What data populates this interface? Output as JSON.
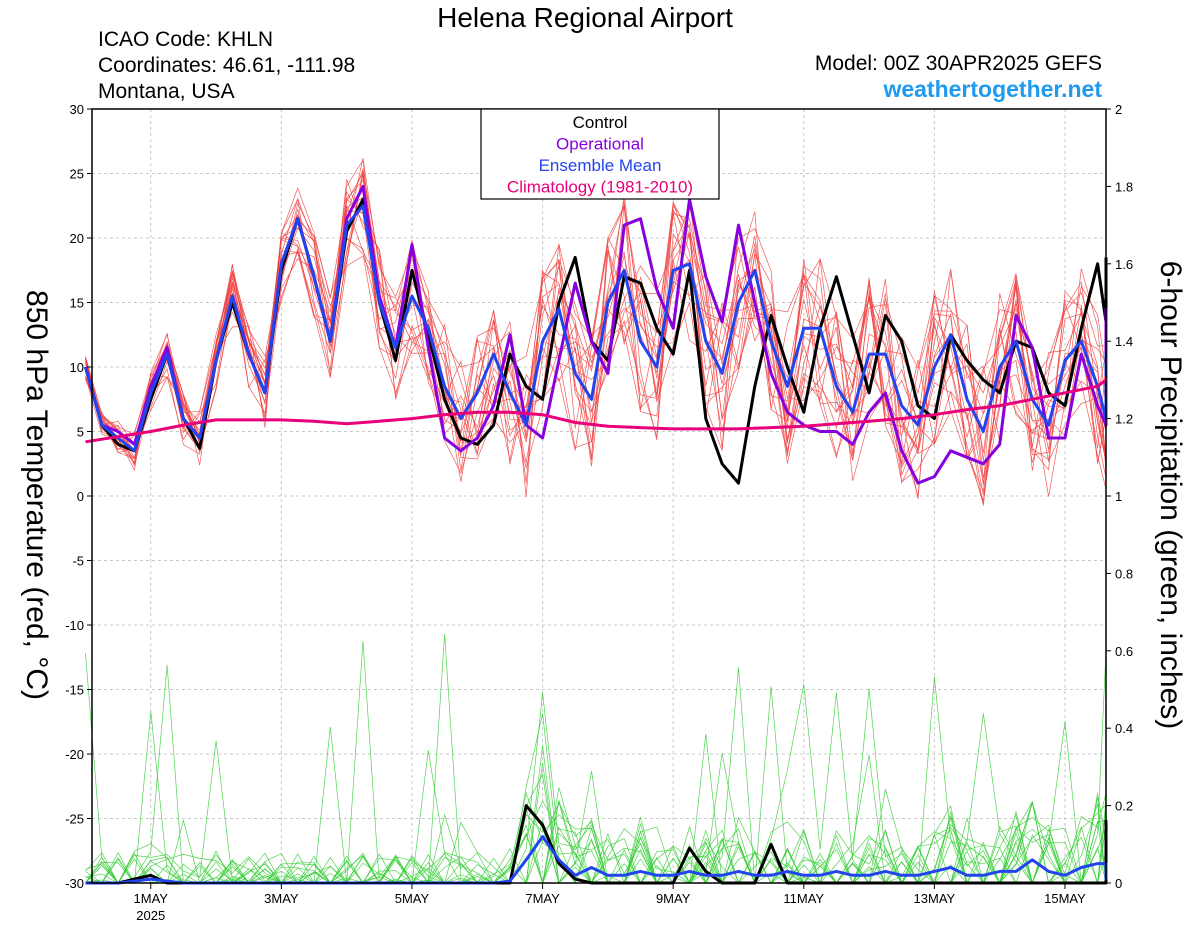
{
  "header": {
    "title": "Helena Regional Airport",
    "icao": "ICAO Code: KHLN",
    "coords": "Coordinates: 46.61, -111.98",
    "region": "Montana, USA",
    "model": "Model: 00Z 30APR2025 GEFS",
    "site": "weathertogether.net"
  },
  "chart_data": {
    "type": "line",
    "xlabel": "",
    "ylabel_left": "850 hPa Temperature (red, °C)",
    "ylabel_right": "6-hour Precipitation (green, inches)",
    "ylim_left": [
      -30,
      30
    ],
    "ylim_right": [
      0,
      2
    ],
    "y_ticks_left": [
      30,
      25,
      20,
      15,
      10,
      5,
      0,
      -5,
      -10,
      -15,
      -20,
      -25,
      -30
    ],
    "y_ticks_right": [
      "2",
      "1.8",
      "1.6",
      "1.4",
      "1.2",
      "1",
      "0.8",
      "0.6",
      "0.4",
      "0.2",
      "0"
    ],
    "x_ticks": [
      {
        "day": 1,
        "label": "1MAY",
        "sub": "2025"
      },
      {
        "day": 3,
        "label": "3MAY",
        "sub": ""
      },
      {
        "day": 5,
        "label": "5MAY",
        "sub": ""
      },
      {
        "day": 7,
        "label": "7MAY",
        "sub": ""
      },
      {
        "day": 9,
        "label": "9MAY",
        "sub": ""
      },
      {
        "day": 11,
        "label": "11MAY",
        "sub": ""
      },
      {
        "day": 13,
        "label": "13MAY",
        "sub": ""
      },
      {
        "day": 15,
        "label": "15MAY",
        "sub": ""
      }
    ],
    "x_start_day": 0.0,
    "x_step_days": 0.25,
    "grid": true,
    "legend_position": "top-center",
    "legend": [
      {
        "name": "Control",
        "color": "#000000"
      },
      {
        "name": "Operational",
        "color": "#8800dd"
      },
      {
        "name": "Ensemble Mean",
        "color": "#2244ee"
      },
      {
        "name": "Climatology (1981-2010)",
        "color": "#e8007a"
      }
    ],
    "colors": {
      "members_temp": "#f04040",
      "members_precip": "#33cc33"
    },
    "series": [
      {
        "name": "Control",
        "axis": "temperature",
        "values": [
          10,
          5.5,
          4,
          3.5,
          7.5,
          11,
          6,
          3.7,
          10.5,
          15,
          11,
          8,
          17.5,
          21.5,
          17,
          12,
          20.5,
          23,
          15,
          10.5,
          17.5,
          12.5,
          7.5,
          4.5,
          4,
          5.5,
          11,
          8.5,
          7.5,
          15,
          18.5,
          12,
          10.5,
          17,
          16.5,
          13,
          11,
          17.5,
          6,
          2.5,
          1,
          8.5,
          14,
          10,
          6.5,
          13,
          17,
          12.5,
          8,
          14,
          12,
          7,
          6,
          12.5,
          10.5,
          9,
          8,
          12,
          11.5,
          8,
          7,
          13,
          18,
          13.5,
          11,
          18,
          18.5
        ]
      },
      {
        "name": "Operational",
        "axis": "temperature",
        "values": [
          10,
          5.5,
          5,
          4,
          8.5,
          11.5,
          6,
          4.5,
          10.5,
          15.5,
          11,
          8,
          18,
          21.5,
          17,
          12,
          21.5,
          24,
          15.5,
          11.5,
          19.5,
          11.5,
          4.5,
          3.5,
          4.5,
          7,
          12.5,
          5.5,
          4.5,
          10.5,
          16.5,
          12,
          9.5,
          21,
          21.5,
          16,
          13,
          23,
          17,
          13.5,
          21,
          15,
          9.5,
          6.5,
          5.5,
          5,
          5,
          4,
          6.5,
          8,
          3.5,
          1,
          1.5,
          3.5,
          3,
          2.5,
          4,
          14,
          11.5,
          4.5,
          4.5,
          11,
          7,
          5.5,
          7,
          14.5,
          12
        ]
      },
      {
        "name": "Ensemble Mean",
        "axis": "temperature",
        "values": [
          10,
          5.5,
          4.5,
          3.5,
          8,
          11,
          6,
          4.5,
          10.5,
          15.5,
          11,
          8,
          18,
          21.5,
          17,
          12,
          21,
          22.5,
          15,
          11.5,
          15.5,
          13,
          8.5,
          6,
          8,
          11,
          8,
          5.5,
          12,
          14.5,
          9.5,
          7.5,
          15,
          17.5,
          12,
          10,
          17.5,
          18,
          12,
          9.5,
          15,
          17.5,
          12,
          8.5,
          13,
          13,
          8.5,
          6.5,
          11,
          11,
          7,
          5.5,
          10,
          12.5,
          7.5,
          5,
          10,
          12,
          7.5,
          5.5,
          10.5,
          12,
          8.5,
          6,
          11,
          11
        ]
      },
      {
        "name": "Climatology (1981-2010)",
        "axis": "temperature",
        "values": [
          4.2,
          4.6,
          5,
          5.5,
          5.9,
          5.9,
          5.9,
          5.8,
          5.6,
          5.8,
          6,
          6.3,
          6.5,
          6.5,
          6.3,
          5.7,
          5.4,
          5.3,
          5.2,
          5.2,
          5.2,
          5.3,
          5.4,
          5.6,
          5.8,
          6,
          6.3,
          6.7,
          7,
          7.5,
          8,
          8.5,
          9,
          9,
          9.2,
          9.3
        ]
      },
      {
        "name": "Control",
        "axis": "precipitation",
        "values": [
          0,
          0,
          0,
          0.01,
          0.02,
          0,
          0,
          0,
          0,
          0,
          0,
          0,
          0,
          0,
          0,
          0,
          0,
          0,
          0,
          0,
          0,
          0,
          0,
          0,
          0,
          0,
          0,
          0.2,
          0.15,
          0.05,
          0.01,
          0,
          0,
          0,
          0,
          0,
          0,
          0.09,
          0.03,
          0,
          0,
          0,
          0.1,
          0,
          0,
          0,
          0,
          0,
          0,
          0,
          0,
          0,
          0,
          0,
          0,
          0,
          0,
          0,
          0,
          0,
          0,
          0,
          0,
          0,
          0.04,
          0.03,
          0,
          0,
          0,
          0.02,
          0.05,
          0.16,
          0.16,
          0.04,
          0.02,
          0.01,
          0,
          0,
          0
        ]
      },
      {
        "name": "Ensemble Mean",
        "axis": "precipitation",
        "values": [
          0,
          0,
          0,
          0.005,
          0.01,
          0.005,
          0,
          0,
          0,
          0,
          0,
          0,
          0,
          0,
          0,
          0,
          0,
          0,
          0,
          0,
          0,
          0,
          0,
          0,
          0,
          0,
          0.005,
          0.06,
          0.12,
          0.06,
          0.02,
          0.04,
          0.02,
          0.02,
          0.03,
          0.02,
          0.02,
          0.03,
          0.02,
          0.02,
          0.03,
          0.02,
          0.02,
          0.03,
          0.02,
          0.02,
          0.03,
          0.02,
          0.02,
          0.03,
          0.02,
          0.02,
          0.03,
          0.04,
          0.02,
          0.02,
          0.03,
          0.03,
          0.06,
          0.03,
          0.02,
          0.04,
          0.05,
          0.05,
          0.03,
          0.02,
          0.02,
          0.02,
          0.01,
          0.02,
          0.03,
          0.02,
          0.02,
          0.03,
          0.03,
          0.02,
          0.01,
          0.02,
          0.03
        ]
      }
    ]
  }
}
